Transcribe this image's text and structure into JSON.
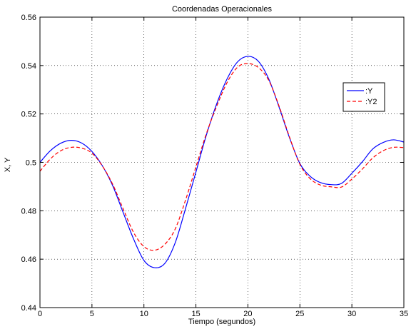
{
  "chart_data": {
    "type": "line",
    "title": "Coordenadas Operacionales",
    "xlabel": "Tiempo (segundos)",
    "ylabel": "X, Y",
    "xlim": [
      0,
      35
    ],
    "ylim": [
      0.44,
      0.56
    ],
    "xticks": [
      0,
      5,
      10,
      15,
      20,
      25,
      30,
      35
    ],
    "yticks": [
      0.44,
      0.46,
      0.48,
      0.5,
      0.52,
      0.54,
      0.56
    ],
    "xtick_labels": [
      "0",
      "5",
      "10",
      "15",
      "20",
      "25",
      "30",
      "35"
    ],
    "ytick_labels": [
      "0.44",
      "0.46",
      "0.48",
      "0.5",
      "0.52",
      "0.54",
      "0.56"
    ],
    "grid": true,
    "legend_position": "right",
    "series": [
      {
        "name": ":Y",
        "color": "#0000ff",
        "style": "solid",
        "x": [
          0,
          1,
          2,
          3,
          4,
          5,
          6,
          7,
          8,
          9,
          10,
          11,
          12,
          13,
          14,
          15,
          16,
          17,
          18,
          19,
          20,
          21,
          22,
          23,
          24,
          25,
          26,
          27,
          28,
          29,
          30,
          31,
          32,
          33,
          34,
          35
        ],
        "y": [
          0.5,
          0.5048,
          0.5079,
          0.5091,
          0.508,
          0.5045,
          0.4986,
          0.4903,
          0.4793,
          0.4684,
          0.4595,
          0.4565,
          0.4582,
          0.4667,
          0.4809,
          0.496,
          0.5112,
          0.5242,
          0.5345,
          0.5415,
          0.5438,
          0.5418,
          0.5345,
          0.5228,
          0.5102,
          0.4995,
          0.4942,
          0.4916,
          0.4908,
          0.4913,
          0.4955,
          0.5002,
          0.5055,
          0.5082,
          0.5093,
          0.5084
        ]
      },
      {
        "name": ":Y2",
        "color": "#ff0000",
        "style": "dashed",
        "x": [
          0,
          1,
          2,
          3,
          4,
          5,
          6,
          7,
          8,
          9,
          10,
          11,
          12,
          13,
          14,
          15,
          16,
          17,
          18,
          19,
          20,
          21,
          22,
          23,
          24,
          25,
          26,
          27,
          28,
          29,
          30,
          31,
          32,
          33,
          34,
          35
        ],
        "y": [
          0.4963,
          0.5014,
          0.5048,
          0.5062,
          0.5059,
          0.5038,
          0.4985,
          0.4909,
          0.4808,
          0.4711,
          0.4652,
          0.4637,
          0.4661,
          0.4724,
          0.4844,
          0.4981,
          0.5118,
          0.5232,
          0.533,
          0.5393,
          0.5408,
          0.5392,
          0.5339,
          0.5232,
          0.5105,
          0.4992,
          0.4932,
          0.4906,
          0.4899,
          0.4898,
          0.4931,
          0.4972,
          0.5018,
          0.5048,
          0.5062,
          0.5061
        ]
      }
    ]
  }
}
